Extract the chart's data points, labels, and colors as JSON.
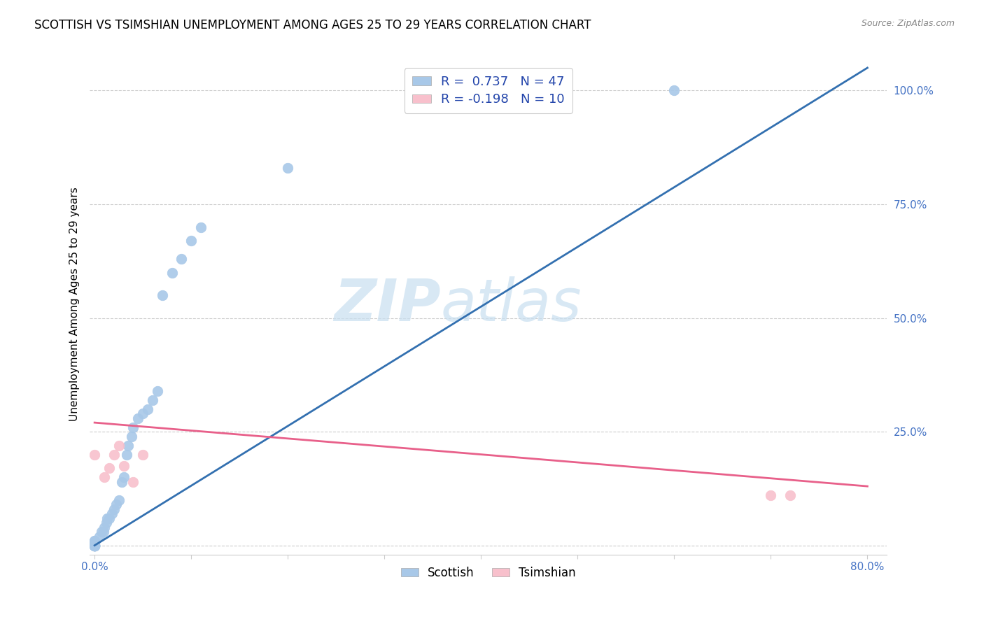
{
  "title": "SCOTTISH VS TSIMSHIAN UNEMPLOYMENT AMONG AGES 25 TO 29 YEARS CORRELATION CHART",
  "source": "Source: ZipAtlas.com",
  "ylabel": "Unemployment Among Ages 25 to 29 years",
  "xlim": [
    -0.005,
    0.82
  ],
  "ylim": [
    -0.02,
    1.08
  ],
  "xticks": [
    0.0,
    0.1,
    0.2,
    0.3,
    0.4,
    0.5,
    0.6,
    0.7,
    0.8
  ],
  "xticklabels": [
    "0.0%",
    "",
    "",
    "",
    "",
    "",
    "",
    "",
    "80.0%"
  ],
  "yticks": [
    0.0,
    0.25,
    0.5,
    0.75,
    1.0
  ],
  "yticklabels": [
    "",
    "25.0%",
    "50.0%",
    "75.0%",
    "100.0%"
  ],
  "scottish_r": 0.737,
  "scottish_n": 47,
  "tsimshian_r": -0.198,
  "tsimshian_n": 10,
  "scottish_color": "#a8c8e8",
  "tsimshian_color": "#f8c0cc",
  "scottish_line_color": "#3370b0",
  "tsimshian_line_color": "#e8608a",
  "legend_r_color": "#2244aa",
  "watermark_zip": "ZIP",
  "watermark_atlas": "atlas",
  "scottish_x": [
    0.0,
    0.0,
    0.0,
    0.0,
    0.0,
    0.0,
    0.0,
    0.0,
    0.0,
    0.0,
    0.0,
    0.0,
    0.0,
    0.0,
    0.0,
    0.0,
    0.0,
    0.0,
    0.005,
    0.007,
    0.009,
    0.01,
    0.012,
    0.013,
    0.015,
    0.018,
    0.02,
    0.022,
    0.025,
    0.028,
    0.03,
    0.033,
    0.035,
    0.038,
    0.04,
    0.045,
    0.05,
    0.055,
    0.06,
    0.065,
    0.07,
    0.08,
    0.09,
    0.1,
    0.11,
    0.2,
    0.6
  ],
  "scottish_y": [
    0.0,
    0.0,
    0.0,
    0.0,
    0.0,
    0.0,
    0.0,
    0.0,
    0.0,
    0.0,
    0.0,
    0.0,
    0.0,
    0.0,
    0.005,
    0.005,
    0.01,
    0.01,
    0.02,
    0.03,
    0.03,
    0.04,
    0.05,
    0.06,
    0.06,
    0.07,
    0.08,
    0.09,
    0.1,
    0.14,
    0.15,
    0.2,
    0.22,
    0.24,
    0.26,
    0.28,
    0.29,
    0.3,
    0.32,
    0.34,
    0.55,
    0.6,
    0.63,
    0.67,
    0.7,
    0.83,
    1.0
  ],
  "tsimshian_x": [
    0.0,
    0.01,
    0.015,
    0.02,
    0.025,
    0.03,
    0.04,
    0.05,
    0.7,
    0.72
  ],
  "tsimshian_y": [
    0.2,
    0.15,
    0.17,
    0.2,
    0.22,
    0.175,
    0.14,
    0.2,
    0.11,
    0.11
  ],
  "scottish_line_x": [
    0.0,
    0.8
  ],
  "scottish_line_y": [
    0.0,
    1.05
  ],
  "tsimshian_line_x": [
    0.0,
    0.8
  ],
  "tsimshian_line_y": [
    0.27,
    0.13
  ]
}
